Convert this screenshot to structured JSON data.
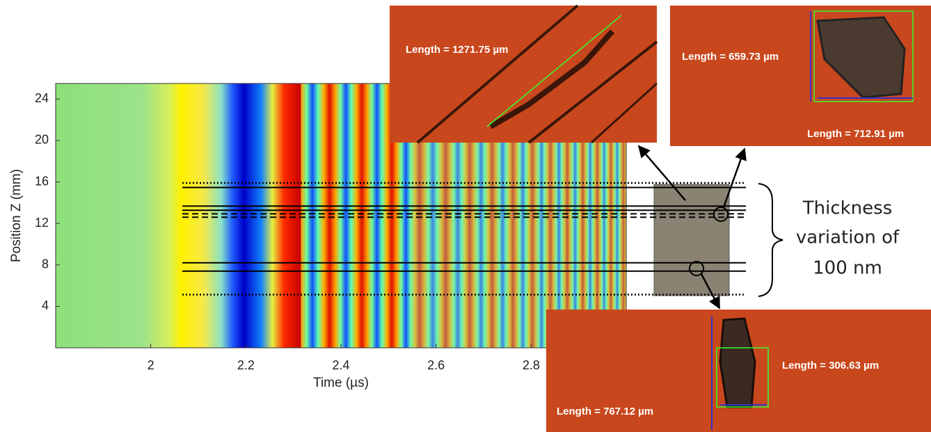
{
  "chart_data": {
    "type": "heatmap",
    "x_label": "Time (µs)",
    "y_label": "Position Z (mm)",
    "xlim": [
      1.8,
      3.0
    ],
    "xticks": [
      2,
      2.2,
      2.4,
      2.6,
      2.8
    ],
    "ylim": [
      0,
      25.5
    ],
    "yticks": [
      4,
      8,
      12,
      16,
      20,
      24
    ],
    "hlines": [
      {
        "y": 15.9,
        "style": "dotted"
      },
      {
        "y": 15.47,
        "style": "solid"
      },
      {
        "y": 13.67,
        "style": "solid"
      },
      {
        "y": 13.27,
        "style": "solid"
      },
      {
        "y": 12.93,
        "style": "dashed"
      },
      {
        "y": 12.6,
        "style": "dashed"
      },
      {
        "y": 8.2,
        "style": "solid"
      },
      {
        "y": 7.4,
        "style": "solid"
      },
      {
        "y": 5.13,
        "style": "dotted"
      }
    ],
    "annotation": [
      "Thickness",
      "variation of",
      "100 nm"
    ],
    "insets": [
      {
        "labels": [
          "Length = 1271.75 µm"
        ]
      },
      {
        "labels": [
          "Length = 659.73 µm",
          "Length = 712.91 µm"
        ]
      },
      {
        "labels": [
          "Length = 306.63 µm",
          "Length = 767.12 µm"
        ]
      }
    ]
  }
}
